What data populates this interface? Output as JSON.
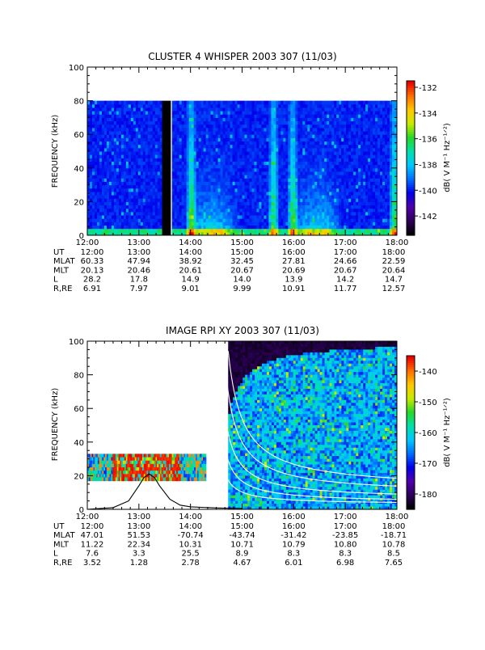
{
  "chart_data": [
    {
      "type": "heatmap",
      "title": "CLUSTER 4 WHISPER 2003 307 (11/03)",
      "ylabel": "FREQUENCY (kHz)",
      "ylim": [
        0,
        100
      ],
      "y_ticks": [
        "0",
        "20",
        "40",
        "60",
        "80",
        "100"
      ],
      "x_ticks": [
        "12:00",
        "13:00",
        "14:00",
        "15:00",
        "16:00",
        "17:00",
        "18:00"
      ],
      "data_freq_max_khz": 80,
      "colorbar": {
        "label": "dB( V M⁻¹ Hz⁻¹ᐟ²)",
        "range": [
          -143.5,
          -131.5
        ],
        "ticks": [
          "-132",
          "-134",
          "-136",
          "-138",
          "-140",
          "-142"
        ]
      },
      "gap_hours": [
        13.45,
        13.62
      ],
      "bright_bursts_hours": [
        14.02,
        15.62,
        16.0,
        17.95
      ],
      "ephemeris": [
        {
          "label": "UT",
          "values": [
            "12:00",
            "13:00",
            "14:00",
            "15:00",
            "16:00",
            "17:00",
            "18:00"
          ]
        },
        {
          "label": "MLAT",
          "values": [
            "60.33",
            "47.94",
            "38.92",
            "32.45",
            "27.81",
            "24.66",
            "22.59"
          ]
        },
        {
          "label": "MLT",
          "values": [
            "20.13",
            "20.46",
            "20.61",
            "20.67",
            "20.69",
            "20.67",
            "20.64"
          ]
        },
        {
          "label": "L",
          "values": [
            "28.2",
            "17.8",
            "14.9",
            "14.0",
            "13.9",
            "14.2",
            "14.7"
          ]
        },
        {
          "label": "R,RE",
          "values": [
            "6.91",
            "7.97",
            "9.01",
            "9.99",
            "10.91",
            "11.77",
            "12.57"
          ]
        }
      ]
    },
    {
      "type": "heatmap",
      "title": "IMAGE RPI XY 2003 307 (11/03)",
      "ylabel": "FREQUENCY (kHz)",
      "ylim": [
        0,
        100
      ],
      "y_ticks": [
        "0",
        "20",
        "40",
        "60",
        "80",
        "100"
      ],
      "x_ticks": [
        "12:00",
        "13:00",
        "14:00",
        "15:00",
        "16:00",
        "17:00",
        "18:00"
      ],
      "colorbar": {
        "label": "dB( V M⁻¹ Hz⁻¹ᐟ²)",
        "range": [
          -185,
          -135
        ],
        "ticks": [
          "-140",
          "-150",
          "-160",
          "-170",
          "-180"
        ]
      },
      "low_res_segment": {
        "start_hour": 12.0,
        "end_hour": 14.3,
        "freq_khz": [
          17,
          33
        ]
      },
      "high_res_segment": {
        "start_hour": 14.73,
        "end_hour": 18.0,
        "freq_khz": [
          0,
          100
        ]
      },
      "plasma_frequency_curve": {
        "hours": [
          12.0,
          12.5,
          12.8,
          13.0,
          13.1,
          13.2,
          13.3,
          13.4,
          13.6,
          13.8,
          14.0,
          14.5,
          15.0
        ],
        "freq_khz": [
          0,
          1,
          5,
          14,
          19,
          21,
          19,
          14,
          6,
          2.5,
          1.5,
          0.8,
          0.5
        ]
      },
      "white_curves": [
        {
          "a": 12,
          "b": 23
        },
        {
          "a": 9,
          "b": 17
        },
        {
          "a": 6,
          "b": 11
        },
        {
          "a": 4,
          "b": 7
        },
        {
          "a": 3,
          "b": 4
        }
      ],
      "ephemeris": [
        {
          "label": "UT",
          "values": [
            "12:00",
            "13:00",
            "14:00",
            "15:00",
            "16:00",
            "17:00",
            "18:00"
          ]
        },
        {
          "label": "MLAT",
          "values": [
            "47.01",
            "51.53",
            "-70.74",
            "-43.74",
            "-31.42",
            "-23.85",
            "-18.71"
          ]
        },
        {
          "label": "MLT",
          "values": [
            "11.22",
            "22.34",
            "10.31",
            "10.71",
            "10.79",
            "10.80",
            "10.78"
          ]
        },
        {
          "label": "L",
          "values": [
            "7.6",
            "3.3",
            "25.5",
            "8.9",
            "8.3",
            "8.3",
            "8.5"
          ]
        },
        {
          "label": "R,RE",
          "values": [
            "3.52",
            "1.28",
            "2.78",
            "4.67",
            "6.01",
            "6.98",
            "7.65"
          ]
        }
      ]
    }
  ]
}
